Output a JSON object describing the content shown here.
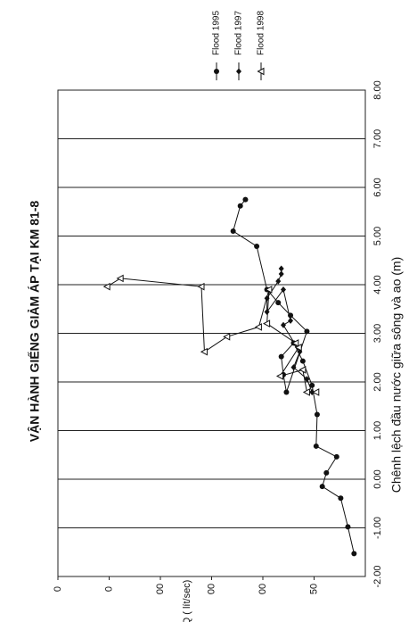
{
  "chart_data": {
    "type": "line",
    "title": "VẬN HÀNH GIẾNG GIẢM ÁP TẠI KM 81-8",
    "x_label": "Chênh lệch đầu nước giữa sông và ao (m)",
    "y_label": "Q ( lít/sec)",
    "xlim": [
      -2,
      8
    ],
    "ylim": [
      0,
      300
    ],
    "xticks": [
      {
        "value": -2,
        "label": "-2.00"
      },
      {
        "value": -1,
        "label": "-1.00"
      },
      {
        "value": 0,
        "label": "0.00"
      },
      {
        "value": 1,
        "label": "1.00"
      },
      {
        "value": 2,
        "label": "2.00"
      },
      {
        "value": 3,
        "label": "3.00"
      },
      {
        "value": 4,
        "label": "4.00"
      },
      {
        "value": 5,
        "label": "5.00"
      },
      {
        "value": 6,
        "label": "6.00"
      },
      {
        "value": 7,
        "label": "7.00"
      },
      {
        "value": 8,
        "label": "8.00"
      }
    ],
    "yticks": [
      50,
      {
        "value": 100,
        "label": "00"
      },
      {
        "value": 150,
        "label": "00"
      },
      {
        "value": 200,
        "label": "00"
      },
      {
        "value": 250,
        "label": "0"
      },
      {
        "value": 300,
        "label": "0"
      }
    ],
    "grid": true,
    "series": [
      {
        "name": "Flood 1995",
        "color": "#111111",
        "marker": "circle",
        "x": [
          -1.53,
          -0.98,
          -0.39,
          -0.15,
          0.13,
          0.46,
          0.68,
          1.33,
          1.93,
          2.43,
          2.8,
          2.52,
          2.15,
          1.79,
          3.04,
          3.37,
          3.63,
          3.9,
          4.79,
          5.1,
          5.62,
          5.75
        ],
        "values": [
          11,
          17,
          24,
          42,
          38,
          28,
          48,
          47,
          52,
          61,
          70,
          82,
          80,
          77,
          57,
          73,
          85,
          96,
          106,
          129,
          122,
          117
        ]
      },
      {
        "name": "Flood 1997",
        "color": "#111111",
        "marker": "diamond",
        "x": [
          1.79,
          2.06,
          2.3,
          2.62,
          3.17,
          3.26,
          3.9,
          3.44,
          3.72,
          4.07,
          4.22,
          4.33
        ],
        "values": [
          52,
          57,
          70,
          64,
          80,
          73,
          80,
          96,
          96,
          85,
          82,
          82
        ]
      },
      {
        "name": "Flood 1998",
        "color": "#111111",
        "marker": "triangle",
        "x": [
          1.79,
          1.79,
          2.25,
          2.12,
          2.71,
          2.8,
          3.2,
          3.9,
          3.13,
          2.93,
          2.62,
          3.96,
          4.13,
          3.96
        ],
        "values": [
          48,
          57,
          61,
          83,
          65,
          68,
          96,
          94,
          104,
          135,
          157,
          160,
          239,
          252
        ]
      }
    ]
  }
}
